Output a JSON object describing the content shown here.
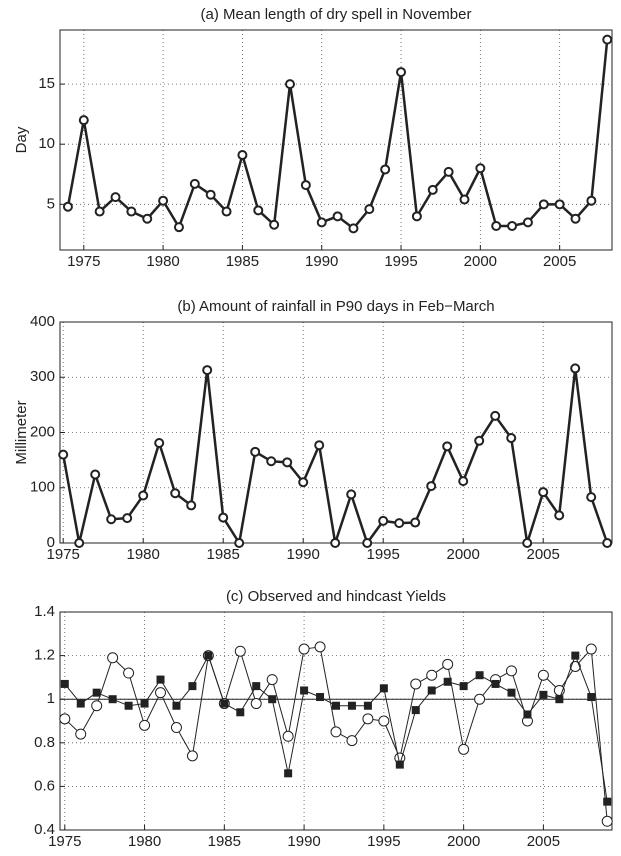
{
  "chart_data": [
    {
      "type": "line",
      "title": "(a) Mean length of dry spell in November",
      "y_label": "Day",
      "x": [
        1974,
        1975,
        1976,
        1977,
        1978,
        1979,
        1980,
        1981,
        1982,
        1983,
        1984,
        1985,
        1986,
        1987,
        1988,
        1989,
        1990,
        1991,
        1992,
        1993,
        1994,
        1995,
        1996,
        1997,
        1998,
        1999,
        2000,
        2001,
        2002,
        2003,
        2004,
        2005,
        2006,
        2007,
        2008
      ],
      "series": [
        {
          "color": "#222222",
          "marker": "circle",
          "line_width": 2.5,
          "values": [
            4.8,
            12,
            4.4,
            5.6,
            4.4,
            3.8,
            5.3,
            3.1,
            6.7,
            5.8,
            4.4,
            9.1,
            4.5,
            3.3,
            15,
            6.6,
            3.5,
            4.0,
            3.0,
            4.6,
            7.9,
            16,
            4.0,
            6.2,
            7.7,
            5.4,
            8.0,
            3.2,
            3.2,
            3.5,
            5.0,
            5.0,
            3.8,
            5.3,
            18.7
          ]
        }
      ],
      "xlim": [
        1973.5,
        2008.3
      ],
      "xticks": [
        1975,
        1980,
        1985,
        1990,
        1995,
        2000,
        2005
      ],
      "ylim": [
        1.2,
        19.5
      ],
      "yticks": [
        5,
        10,
        15
      ],
      "grid": true
    },
    {
      "type": "line",
      "title": "(b) Amount of rainfall in P90 days in Feb−March",
      "y_label": "Millimeter",
      "x": [
        1975,
        1976,
        1977,
        1978,
        1979,
        1980,
        1981,
        1982,
        1983,
        1984,
        1985,
        1986,
        1987,
        1988,
        1989,
        1990,
        1991,
        1992,
        1993,
        1994,
        1995,
        1996,
        1997,
        1998,
        1999,
        2000,
        2001,
        2002,
        2003,
        2004,
        2005,
        2006,
        2007,
        2008,
        2009
      ],
      "series": [
        {
          "color": "#222222",
          "marker": "circle",
          "line_width": 2.5,
          "values": [
            160,
            0,
            124,
            43,
            45,
            86,
            181,
            90,
            68,
            313,
            46,
            0,
            165,
            148,
            146,
            110,
            177,
            0,
            88,
            0,
            40,
            36,
            37,
            103,
            175,
            112,
            185,
            230,
            190,
            0,
            92,
            50,
            316,
            83,
            0
          ]
        }
      ],
      "xlim": [
        1974.8,
        2009.3
      ],
      "xticks": [
        1975,
        1980,
        1985,
        1990,
        1995,
        2000,
        2005
      ],
      "ylim": [
        0,
        400
      ],
      "yticks": [
        0,
        100,
        200,
        300,
        400
      ],
      "grid": true
    },
    {
      "type": "line",
      "title": "(c) Observed and hindcast Yields",
      "x": [
        1975,
        1976,
        1977,
        1978,
        1979,
        1980,
        1981,
        1982,
        1983,
        1984,
        1985,
        1986,
        1987,
        1988,
        1989,
        1990,
        1991,
        1992,
        1993,
        1994,
        1995,
        1996,
        1997,
        1998,
        1999,
        2000,
        2001,
        2002,
        2003,
        2004,
        2005,
        2006,
        2007,
        2008,
        2009
      ],
      "series": [
        {
          "color": "#222222",
          "marker": "circle",
          "line_width": 1,
          "values": [
            0.91,
            0.84,
            0.97,
            1.19,
            1.12,
            0.88,
            1.03,
            0.87,
            0.74,
            1.2,
            0.98,
            1.22,
            0.98,
            1.09,
            0.83,
            1.23,
            1.24,
            0.85,
            0.81,
            0.91,
            0.9,
            0.73,
            1.07,
            1.11,
            1.16,
            0.77,
            1.0,
            1.09,
            1.13,
            0.9,
            1.11,
            1.04,
            1.15,
            1.23,
            0.44
          ]
        },
        {
          "color": "#222222",
          "marker": "square",
          "line_width": 1,
          "values": [
            1.07,
            0.98,
            1.03,
            1.0,
            0.97,
            0.98,
            1.09,
            0.97,
            1.06,
            1.2,
            0.98,
            0.94,
            1.06,
            1.0,
            0.66,
            1.04,
            1.01,
            0.97,
            0.97,
            0.97,
            1.05,
            0.7,
            0.95,
            1.04,
            1.08,
            1.06,
            1.11,
            1.07,
            1.03,
            0.93,
            1.02,
            1.0,
            1.2,
            1.01,
            0.53
          ]
        }
      ],
      "hline": 1,
      "xlim": [
        1974.7,
        2009.3
      ],
      "xticks": [
        1975,
        1980,
        1985,
        1990,
        1995,
        2000,
        2005
      ],
      "ylim": [
        0.4,
        1.4
      ],
      "yticks": [
        0.4,
        0.6,
        0.8,
        1,
        1.2,
        1.4
      ],
      "grid": true
    }
  ]
}
